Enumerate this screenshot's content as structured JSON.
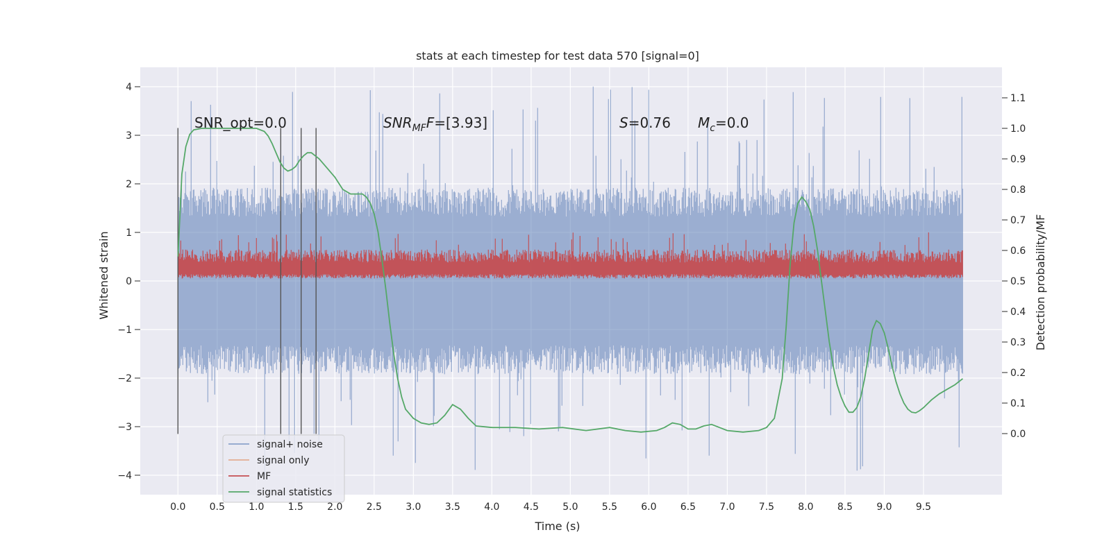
{
  "chart_data": {
    "type": "line",
    "title": "stats at each timestep for test data 570 [signal=0]",
    "xlabel": "Time (s)",
    "ylabel_left": "Whitened strain",
    "ylabel_right": "Detection probability/MF",
    "xlim": [
      -0.48,
      10.5
    ],
    "ylim_left": [
      -4.4,
      4.4
    ],
    "ylim_right": [
      -0.2,
      1.2
    ],
    "x_ticks": [
      0.0,
      0.5,
      1.0,
      1.5,
      2.0,
      2.5,
      3.0,
      3.5,
      4.0,
      4.5,
      5.0,
      5.5,
      6.0,
      6.5,
      7.0,
      7.5,
      8.0,
      8.5,
      9.0,
      9.5
    ],
    "x_tick_labels": [
      "0.0",
      "0.5",
      "1.0",
      "1.5",
      "2.0",
      "2.5",
      "3.0",
      "3.5",
      "4.0",
      "4.5",
      "5.0",
      "5.5",
      "6.0",
      "6.5",
      "7.0",
      "7.5",
      "8.0",
      "8.5",
      "9.0",
      "9.5"
    ],
    "y_left_ticks": [
      -4,
      -3,
      -2,
      -1,
      0,
      1,
      2,
      3,
      4
    ],
    "y_left_tick_labels": [
      "−4",
      "−3",
      "−2",
      "−1",
      "0",
      "1",
      "2",
      "3",
      "4"
    ],
    "y_right_ticks": [
      0.0,
      0.1,
      0.2,
      0.3,
      0.4,
      0.5,
      0.6,
      0.7,
      0.8,
      0.9,
      1.0,
      1.1
    ],
    "y_right_tick_labels": [
      "0.0",
      "0.1",
      "0.2",
      "0.3",
      "0.4",
      "0.5",
      "0.6",
      "0.7",
      "0.8",
      "0.9",
      "1.0",
      "1.1"
    ],
    "grid": true,
    "legend_position": "lower-left",
    "annotations": {
      "snr_opt": "SNR_opt=0.0",
      "snr_mf_prefix": "SNR",
      "snr_mf_sub": "MF",
      "snr_mf_value": "=[3.93]",
      "s_prefix": "S",
      "s_value": "=0.76",
      "mc_prefix": "M",
      "mc_sub": "c",
      "mc_value": "=0.0"
    },
    "vlines_x": [
      0.0,
      1.31,
      1.57,
      1.76
    ],
    "vline_range_left": [
      -3.15,
      3.15
    ],
    "noise_band": {
      "t_start": 0.0,
      "t_end": 10.0,
      "typical_amplitude": 1.7,
      "peak_amplitude": 4.05
    },
    "mf_band": {
      "t_start": 0.0,
      "t_end": 10.0,
      "low": 0.05,
      "high": 0.65
    },
    "series": [
      {
        "name": "signal+ noise",
        "color": "#4c72b0",
        "axis": "left"
      },
      {
        "name": "signal only",
        "color": "#dd8452",
        "axis": "left"
      },
      {
        "name": "MF",
        "color": "#c44e52",
        "axis": "left"
      },
      {
        "name": "signal statistics",
        "color": "#55a868",
        "axis": "right",
        "x": [
          0.0,
          0.05,
          0.1,
          0.15,
          0.2,
          0.3,
          0.5,
          0.7,
          0.9,
          1.0,
          1.1,
          1.15,
          1.2,
          1.25,
          1.3,
          1.35,
          1.4,
          1.45,
          1.5,
          1.55,
          1.6,
          1.65,
          1.7,
          1.75,
          1.8,
          1.85,
          1.9,
          2.0,
          2.1,
          2.2,
          2.3,
          2.35,
          2.4,
          2.45,
          2.5,
          2.55,
          2.6,
          2.65,
          2.7,
          2.75,
          2.8,
          2.85,
          2.9,
          3.0,
          3.1,
          3.2,
          3.3,
          3.4,
          3.5,
          3.6,
          3.7,
          3.8,
          4.0,
          4.3,
          4.6,
          4.9,
          5.2,
          5.5,
          5.7,
          5.9,
          6.1,
          6.2,
          6.3,
          6.4,
          6.5,
          6.6,
          6.7,
          6.8,
          6.9,
          7.0,
          7.2,
          7.4,
          7.5,
          7.6,
          7.7,
          7.75,
          7.8,
          7.85,
          7.9,
          7.95,
          8.0,
          8.05,
          8.1,
          8.15,
          8.2,
          8.25,
          8.3,
          8.35,
          8.4,
          8.45,
          8.5,
          8.55,
          8.6,
          8.65,
          8.7,
          8.75,
          8.8,
          8.85,
          8.9,
          8.95,
          9.0,
          9.05,
          9.1,
          9.15,
          9.2,
          9.25,
          9.3,
          9.35,
          9.4,
          9.45,
          9.5,
          9.6,
          9.7,
          9.8,
          9.9,
          10.0
        ],
        "values": [
          0.58,
          0.85,
          0.94,
          0.98,
          0.995,
          1.0,
          1.0,
          1.0,
          1.0,
          1.0,
          0.99,
          0.975,
          0.95,
          0.92,
          0.89,
          0.87,
          0.86,
          0.865,
          0.875,
          0.895,
          0.91,
          0.92,
          0.92,
          0.91,
          0.9,
          0.885,
          0.87,
          0.84,
          0.8,
          0.785,
          0.785,
          0.785,
          0.775,
          0.755,
          0.72,
          0.66,
          0.57,
          0.47,
          0.36,
          0.26,
          0.18,
          0.12,
          0.08,
          0.05,
          0.035,
          0.03,
          0.035,
          0.06,
          0.095,
          0.08,
          0.05,
          0.025,
          0.02,
          0.02,
          0.015,
          0.02,
          0.01,
          0.02,
          0.01,
          0.005,
          0.01,
          0.02,
          0.035,
          0.03,
          0.015,
          0.015,
          0.025,
          0.03,
          0.02,
          0.01,
          0.005,
          0.01,
          0.02,
          0.05,
          0.18,
          0.35,
          0.55,
          0.69,
          0.755,
          0.775,
          0.76,
          0.735,
          0.68,
          0.6,
          0.5,
          0.4,
          0.3,
          0.22,
          0.16,
          0.12,
          0.09,
          0.07,
          0.07,
          0.085,
          0.12,
          0.18,
          0.26,
          0.34,
          0.37,
          0.36,
          0.33,
          0.28,
          0.22,
          0.17,
          0.13,
          0.1,
          0.08,
          0.07,
          0.068,
          0.075,
          0.085,
          0.11,
          0.13,
          0.145,
          0.16,
          0.18
        ]
      }
    ]
  }
}
